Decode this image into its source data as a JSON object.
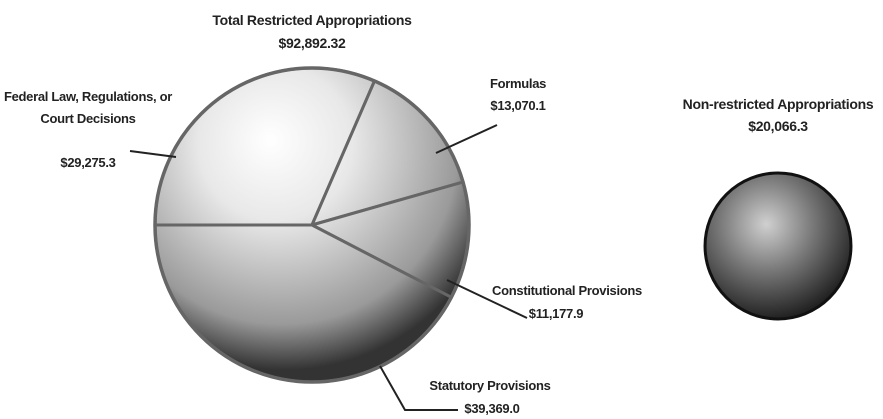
{
  "chart_data": {
    "type": "pie",
    "title": "Total Restricted Appropriations",
    "total": 92892.32,
    "total_label": "$92,892.32",
    "categories": [
      "Federal Law, Regulations, or Court Decisions",
      "Formulas",
      "Constitutional Provisions",
      "Statutory Provisions"
    ],
    "values": [
      29275.3,
      13070.1,
      11177.9,
      39369.0
    ],
    "value_labels": [
      "$29,275.3",
      "$13,070.1",
      "$11,177.9",
      "$39,369.0"
    ],
    "color": "#8a8a8a",
    "other": {
      "label": "Non-restricted Appropriations",
      "value": 20066.3,
      "value_label": "$20,066.3",
      "color": "#4a4a4a"
    }
  }
}
